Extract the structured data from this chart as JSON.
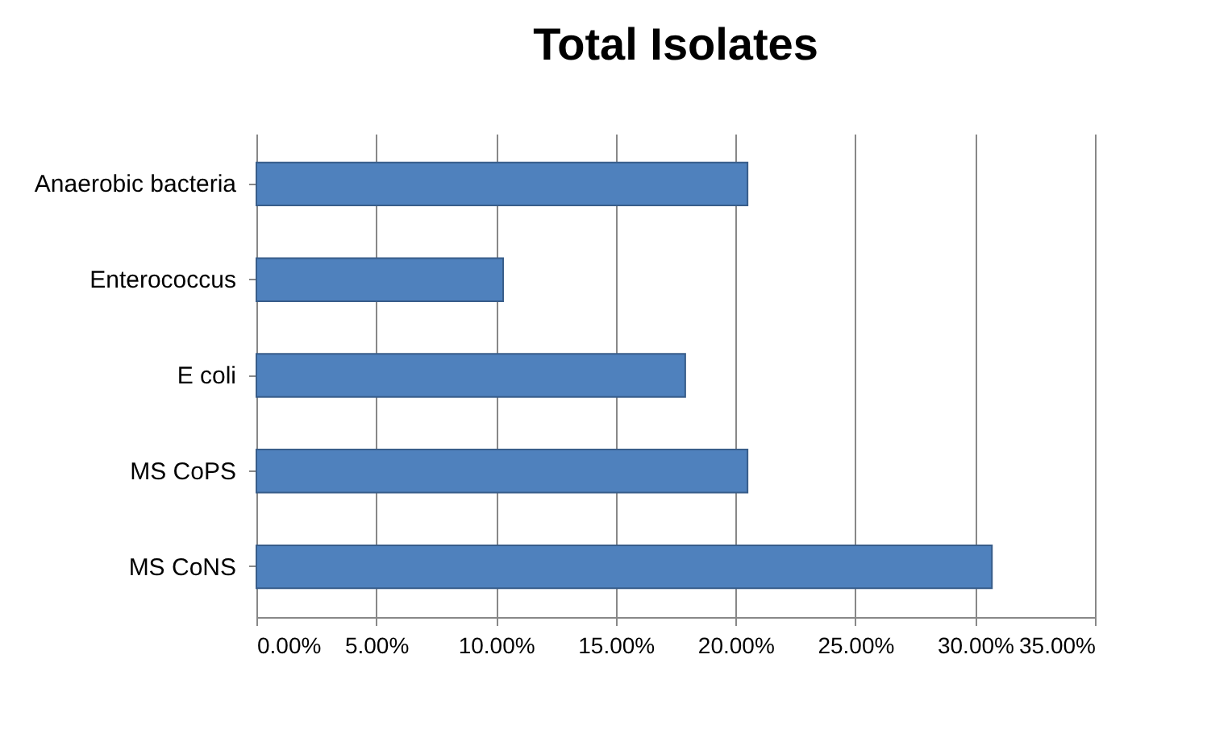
{
  "chart_data": {
    "type": "bar",
    "orientation": "horizontal",
    "title": "Total Isolates",
    "categories": [
      "Anaerobic bacteria",
      "Enterococcus",
      "E coli",
      "MS CoPS",
      "MS CoNS"
    ],
    "values": [
      20.5,
      10.3,
      17.9,
      20.5,
      30.7
    ],
    "color": "#4f81bd",
    "xlim": [
      0,
      35
    ],
    "xticks": [
      {
        "value": 0,
        "label": "0.00%"
      },
      {
        "value": 5,
        "label": "5.00%"
      },
      {
        "value": 10,
        "label": "10.00%"
      },
      {
        "value": 15,
        "label": "15.00%"
      },
      {
        "value": 20,
        "label": "20.00%"
      },
      {
        "value": 25,
        "label": "25.00%"
      },
      {
        "value": 30,
        "label": "30.00%"
      },
      {
        "value": 35,
        "label": "35.00%"
      }
    ],
    "grid": "x"
  }
}
